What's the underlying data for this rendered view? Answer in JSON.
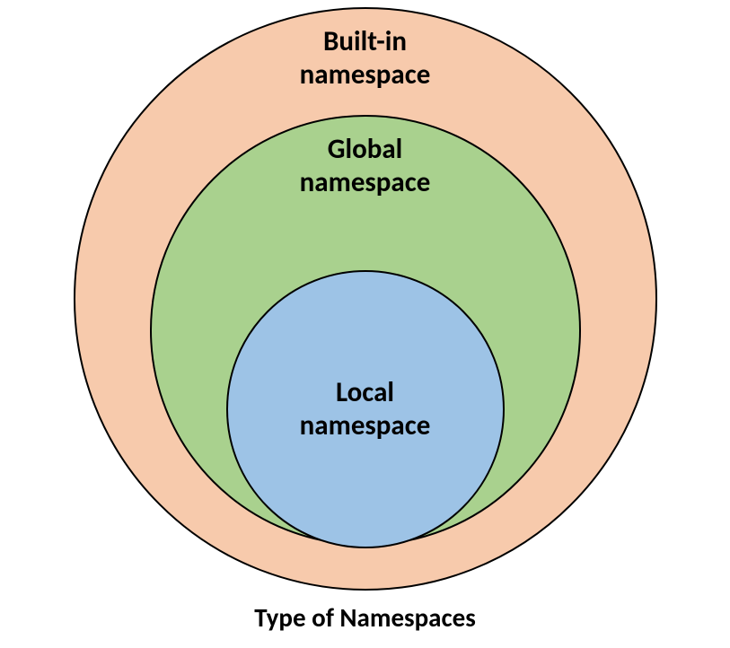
{
  "diagram": {
    "type": "nested-circles",
    "caption": "Type of Namespaces",
    "caption_fontsize": 29,
    "background_color": "#ffffff",
    "stroke_color": "#000000",
    "stroke_width": 2,
    "circles": [
      {
        "id": "outer",
        "label_line1": "Built-in",
        "label_line2": "namespace",
        "fill_color": "#f7caac",
        "diameter": 650,
        "label_fontsize": 31
      },
      {
        "id": "middle",
        "label_line1": "Global",
        "label_line2": "namespace",
        "fill_color": "#a9d18e",
        "diameter": 480,
        "label_fontsize": 31
      },
      {
        "id": "inner",
        "label_line1": "Local",
        "label_line2": "namespace",
        "fill_color": "#9dc3e6",
        "diameter": 310,
        "label_fontsize": 31
      }
    ]
  }
}
